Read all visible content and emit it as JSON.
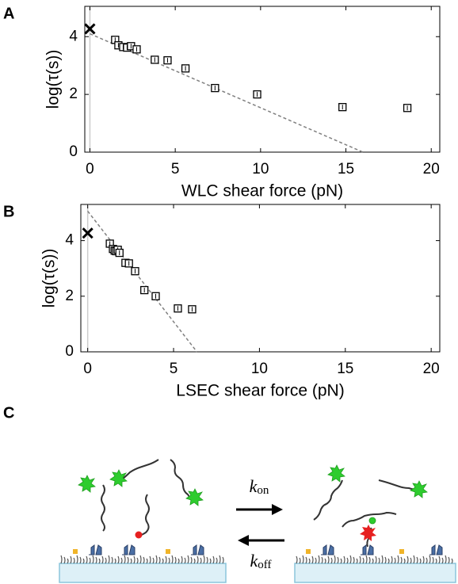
{
  "chart_data": [
    {
      "type": "scatter",
      "label": "A",
      "xlabel": "WLC shear force (pN)",
      "ylabel": "log(τ(s))",
      "xlim": [
        -0.3,
        20.5
      ],
      "ylim": [
        0,
        5.05
      ],
      "xticks": [
        0,
        5,
        10,
        15,
        20
      ],
      "yticks": [
        0,
        2,
        4
      ],
      "vline": 0,
      "series": [
        {
          "marker": "x",
          "color": "#000000",
          "x": [
            0
          ],
          "values": [
            4.27
          ]
        },
        {
          "marker": "square",
          "color": "#000000",
          "x": [
            1.48,
            1.67,
            1.95,
            2.18,
            2.41,
            2.74,
            3.8,
            4.55,
            5.6,
            7.33,
            9.8,
            14.8,
            18.6
          ],
          "values": [
            3.89,
            3.7,
            3.64,
            3.62,
            3.67,
            3.56,
            3.2,
            3.18,
            2.9,
            2.22,
            2.0,
            1.56,
            1.53
          ]
        }
      ],
      "fit": {
        "color": "#808080",
        "x": [
          0,
          16.0
        ],
        "values": [
          4.1,
          0
        ]
      }
    },
    {
      "type": "scatter",
      "label": "B",
      "xlabel": "LSEC shear force (pN)",
      "ylabel": "log(τ(s))",
      "xlim": [
        -0.4,
        20.5
      ],
      "ylim": [
        0,
        5.3
      ],
      "xticks": [
        0,
        5,
        10,
        15,
        20
      ],
      "yticks": [
        0,
        2,
        4
      ],
      "vline": 0,
      "series": [
        {
          "marker": "x",
          "color": "#000000",
          "x": [
            0
          ],
          "values": [
            4.27
          ]
        },
        {
          "marker": "square",
          "color": "#000000",
          "x": [
            1.29,
            1.47,
            1.57,
            1.66,
            1.75,
            1.85,
            2.2,
            2.4,
            2.76,
            3.3,
            3.96,
            5.25,
            6.08
          ],
          "values": [
            3.89,
            3.7,
            3.64,
            3.62,
            3.67,
            3.56,
            3.2,
            3.18,
            2.9,
            2.22,
            2.0,
            1.56,
            1.53
          ]
        }
      ],
      "fit": {
        "color": "#808080",
        "x": [
          0,
          6.36
        ],
        "values": [
          5.06,
          0
        ]
      }
    }
  ],
  "diagram": {
    "label": "C",
    "k_on": {
      "symbol": "k",
      "subscript": "on"
    },
    "k_off": {
      "symbol": "k",
      "subscript": "off"
    }
  }
}
